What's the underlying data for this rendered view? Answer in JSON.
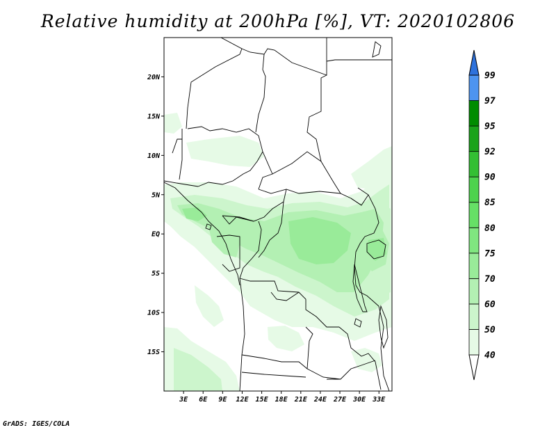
{
  "title": "Relative humidity at 200hPa [%], VT: 2020102806",
  "credit": "GrADS: IGES/COLA",
  "map": {
    "lat_labels": [
      "20N",
      "15N",
      "10N",
      "5N",
      "EQ",
      "5S",
      "10S",
      "15S"
    ],
    "lat_values": [
      20,
      15,
      10,
      5,
      0,
      -5,
      -10,
      -15
    ],
    "lon_labels": [
      "3E",
      "6E",
      "9E",
      "12E",
      "15E",
      "18E",
      "21E",
      "24E",
      "27E",
      "30E",
      "33E"
    ],
    "lon_values": [
      3,
      6,
      9,
      12,
      15,
      18,
      21,
      24,
      27,
      30,
      33
    ],
    "lon_range": [
      0,
      35
    ],
    "lat_range": [
      -20,
      25
    ]
  },
  "colorbar": {
    "levels": [
      "40",
      "50",
      "60",
      "70",
      "75",
      "80",
      "85",
      "90",
      "92",
      "95",
      "97",
      "99"
    ],
    "colors": [
      "#e6fae6",
      "#ccf5cc",
      "#b3f0b3",
      "#99eb99",
      "#80e680",
      "#66e066",
      "#4dd24d",
      "#33bf33",
      "#1aa31a",
      "#008c00",
      "#4d94f0",
      "#2e72dc",
      "#1d59c4"
    ]
  },
  "chart_data": {
    "type": "heatmap",
    "title": "Relative humidity at 200hPa [%], VT: 2020102806",
    "variable": "Relative humidity at 200hPa",
    "units": "%",
    "valid_time": "2020102806",
    "contour_levels": [
      40,
      50,
      60,
      70,
      75,
      80,
      85,
      90,
      92,
      95,
      97,
      99
    ],
    "x_ticks": [
      "3E",
      "6E",
      "9E",
      "12E",
      "15E",
      "18E",
      "21E",
      "24E",
      "27E",
      "30E",
      "33E"
    ],
    "y_ticks": [
      "20N",
      "15N",
      "10N",
      "5N",
      "EQ",
      "5S",
      "10S",
      "15S"
    ],
    "lon_range": [
      0,
      35
    ],
    "lat_range": [
      -20,
      25
    ]
  }
}
